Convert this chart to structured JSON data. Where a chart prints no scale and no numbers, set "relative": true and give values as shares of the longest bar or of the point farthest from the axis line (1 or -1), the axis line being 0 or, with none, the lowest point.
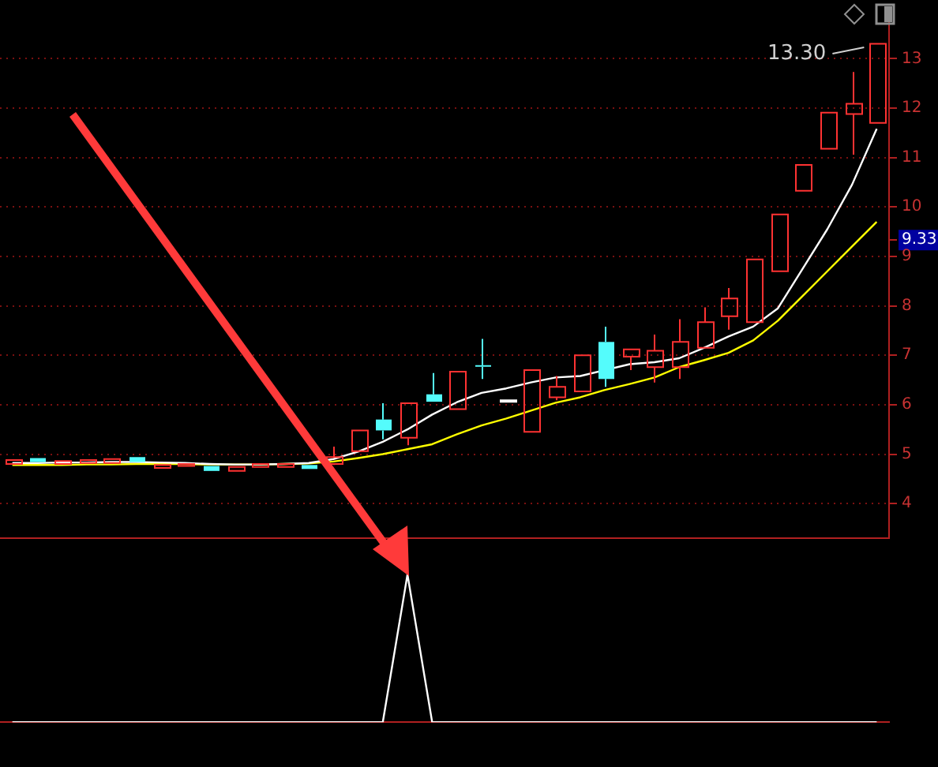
{
  "chart_data": [
    {
      "type": "candlestick",
      "categories": [
        null,
        null,
        null,
        null,
        null,
        null,
        null,
        null,
        null,
        null,
        null,
        null,
        null,
        null,
        null,
        null,
        null,
        null,
        null,
        null,
        null,
        null,
        null,
        null,
        null,
        null,
        null,
        null,
        null,
        null,
        null,
        null,
        null,
        null,
        null,
        null
      ],
      "ohlc": [
        [
          4.8,
          4.88,
          4.8,
          4.88
        ],
        [
          4.92,
          4.92,
          4.84,
          4.84
        ],
        [
          4.8,
          4.86,
          4.8,
          4.86
        ],
        [
          4.82,
          4.88,
          4.82,
          4.88
        ],
        [
          4.82,
          4.9,
          4.82,
          4.9
        ],
        [
          4.94,
          4.94,
          4.84,
          4.84
        ],
        [
          4.72,
          4.78,
          4.72,
          4.78
        ],
        [
          4.76,
          4.8,
          4.76,
          4.8
        ],
        [
          4.76,
          4.76,
          4.66,
          4.66
        ],
        [
          4.66,
          4.74,
          4.66,
          4.74
        ],
        [
          4.74,
          4.8,
          4.74,
          4.8
        ],
        [
          4.74,
          4.8,
          4.74,
          4.8
        ],
        [
          4.78,
          4.78,
          4.7,
          4.7
        ],
        [
          4.8,
          5.15,
          4.78,
          4.94
        ],
        [
          5.06,
          5.48,
          5.06,
          5.48
        ],
        [
          5.7,
          6.03,
          5.3,
          5.48
        ],
        [
          5.33,
          6.03,
          5.18,
          6.03
        ],
        [
          6.21,
          6.64,
          6.06,
          6.06
        ],
        [
          5.91,
          6.67,
          5.91,
          6.67
        ],
        [
          6.8,
          7.33,
          6.52,
          6.78
        ],
        [
          6.09,
          6.09,
          6.09,
          6.09
        ],
        [
          5.45,
          6.7,
          5.45,
          6.7
        ],
        [
          6.15,
          6.58,
          6.09,
          6.36
        ],
        [
          6.27,
          7.0,
          6.27,
          7.0
        ],
        [
          7.27,
          7.58,
          6.36,
          6.52
        ],
        [
          6.97,
          7.12,
          6.7,
          7.12
        ],
        [
          6.76,
          7.42,
          6.45,
          7.09
        ],
        [
          6.76,
          7.73,
          6.52,
          7.27
        ],
        [
          7.15,
          7.97,
          7.15,
          7.67
        ],
        [
          7.79,
          8.36,
          7.52,
          8.15
        ],
        [
          7.67,
          8.94,
          7.67,
          8.94
        ],
        [
          8.7,
          9.85,
          8.7,
          9.85
        ],
        [
          10.33,
          10.85,
          10.33,
          10.85
        ],
        [
          11.18,
          11.91,
          11.18,
          11.91
        ],
        [
          11.88,
          12.73,
          11.06,
          12.09
        ],
        [
          11.7,
          13.3,
          11.7,
          13.3
        ]
      ],
      "colors": [
        "#ff3232",
        "#54fcfc",
        "#ff3232",
        "#ff3232",
        "#ff3232",
        "#54fcfc",
        "#ff3232",
        "#ff3232",
        "#54fcfc",
        "#ff3232",
        "#ff3232",
        "#ff3232",
        "#54fcfc",
        "#ff3232",
        "#ff3232",
        "#54fcfc",
        "#ff3232",
        "#54fcfc",
        "#ff3232",
        "#54fcfc",
        "#ffffff",
        "#ff3232",
        "#ff3232",
        "#ff3232",
        "#54fcfc",
        "#ff3232",
        "#ff3232",
        "#ff3232",
        "#ff3232",
        "#ff3232",
        "#ff3232",
        "#ff3232",
        "#ff3232",
        "#ff3232",
        "#ff3232",
        "#ff3232"
      ],
      "series": [
        {
          "type": "line",
          "color": "#ffffff",
          "values": [
            4.82,
            4.82,
            4.83,
            4.83,
            4.84,
            4.84,
            4.83,
            4.82,
            4.8,
            4.79,
            4.79,
            4.8,
            4.82,
            4.9,
            5.05,
            5.25,
            5.5,
            5.8,
            6.05,
            6.24,
            6.33,
            6.45,
            6.55,
            6.58,
            null,
            6.82,
            6.86,
            6.94,
            7.15,
            7.38,
            7.58,
            7.95,
            8.75,
            9.55,
            10.45,
            11.58
          ]
        },
        {
          "type": "line",
          "color": "#ffff00",
          "values": [
            4.78,
            4.78,
            4.78,
            4.79,
            4.79,
            4.8,
            4.8,
            4.8,
            4.79,
            4.79,
            4.79,
            4.8,
            4.81,
            4.85,
            4.92,
            5.0,
            5.1,
            5.2,
            5.4,
            5.58,
            5.72,
            5.88,
            6.04,
            6.15,
            6.3,
            6.42,
            6.55,
            6.76,
            6.9,
            7.05,
            7.3,
            7.7,
            8.2,
            8.7,
            9.2,
            9.7
          ]
        }
      ],
      "ylim": [
        3.3,
        13.9
      ],
      "yticks": [
        4,
        5,
        6,
        7,
        8,
        9,
        {
          "value": 9.33,
          "label": "9.33"
        },
        10,
        11,
        12,
        13
      ],
      "grid": "y",
      "tick_labels": "y",
      "annotations": [
        "13.30"
      ]
    },
    {
      "type": "line",
      "relative": true,
      "categories": [
        null,
        null,
        null,
        null,
        null,
        null,
        null,
        null,
        null,
        null,
        null,
        null,
        null,
        null,
        null,
        null,
        null,
        null,
        null,
        null,
        null,
        null,
        null,
        null,
        null,
        null,
        null,
        null,
        null,
        null,
        null,
        null,
        null,
        null,
        null,
        null
      ],
      "series": [
        {
          "color": "#ffffff",
          "values": [
            0,
            0,
            0,
            0,
            0,
            0,
            0,
            0,
            0,
            0,
            0,
            0,
            0,
            0,
            0,
            0,
            1,
            0,
            0,
            0,
            0,
            0,
            0,
            0,
            0,
            0,
            0,
            0,
            0,
            0,
            0,
            0,
            0,
            0,
            0,
            0
          ]
        }
      ]
    }
  ]
}
